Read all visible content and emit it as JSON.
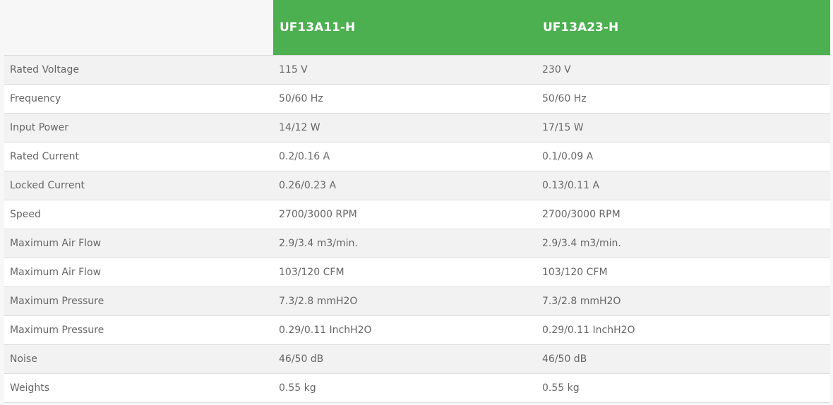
{
  "colors": {
    "header": "#4caf50",
    "text": "#666666"
  },
  "headers": [
    "",
    "UF13A11-H",
    "UF13A23-H"
  ],
  "rows": [
    [
      "Rated Voltage",
      "115 V",
      "230 V"
    ],
    [
      "Frequency",
      "50/60 Hz",
      "50/60 Hz"
    ],
    [
      "Input Power",
      "14/12 W",
      "17/15 W"
    ],
    [
      "Rated Current",
      "0.2/0.16 A",
      "0.1/0.09 A"
    ],
    [
      "Locked Current",
      "0.26/0.23 A",
      "0.13/0.11 A"
    ],
    [
      "Speed",
      "2700/3000 RPM",
      "2700/3000 RPM"
    ],
    [
      "Maximum Air Flow",
      "2.9/3.4 m3/min.",
      "2.9/3.4 m3/min."
    ],
    [
      "Maximum Air Flow",
      "103/120 CFM",
      "103/120 CFM"
    ],
    [
      "Maximum Pressure",
      "7.3/2.8 mmH2O",
      "7.3/2.8 mmH2O"
    ],
    [
      "Maximum Pressure",
      "0.29/0.11 InchH2O",
      "0.29/0.11 InchH2O"
    ],
    [
      "Noise",
      "46/50 dB",
      "46/50 dB"
    ],
    [
      "Weights",
      "0.55 kg",
      "0.55 kg"
    ]
  ]
}
